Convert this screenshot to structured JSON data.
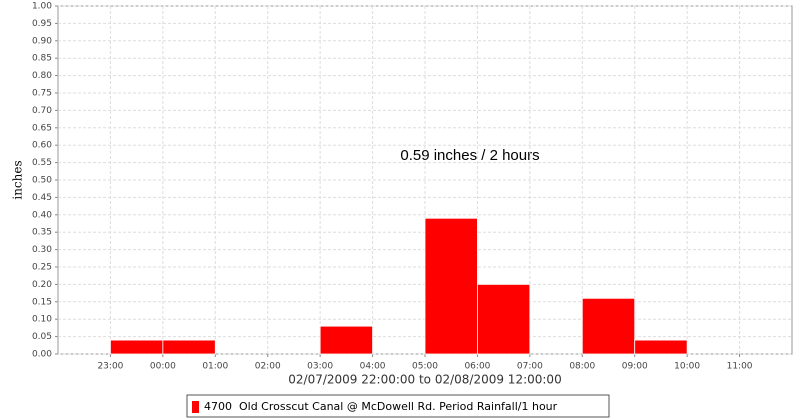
{
  "chart_data": {
    "type": "histogram",
    "annotation": "0.59 inches / 2 hours",
    "y_label": "inches",
    "x_label": "02/07/2009 22:00:00 to 02/08/2009 12:00:00",
    "series": [
      {
        "name": "4700  Old Crosscut Canal @ McDowell Rd. Period Rainfall/1 hour",
        "color": "#ff0000",
        "values": [
          0.04,
          0.04,
          0,
          0,
          0.08,
          0,
          0.39,
          0.2,
          0,
          0.16,
          0.04
        ]
      }
    ],
    "bins": [
      23,
      24,
      25,
      26,
      27,
      28,
      29,
      30,
      31,
      32,
      33,
      34
    ],
    "xlim": [
      22,
      36
    ],
    "xticks": [
      {
        "value": 23,
        "label": "23:00"
      },
      {
        "value": 24,
        "label": "00:00"
      },
      {
        "value": 25,
        "label": "01:00"
      },
      {
        "value": 26,
        "label": "02:00"
      },
      {
        "value": 27,
        "label": "03:00"
      },
      {
        "value": 28,
        "label": "04:00"
      },
      {
        "value": 29,
        "label": "05:00"
      },
      {
        "value": 30,
        "label": "06:00"
      },
      {
        "value": 31,
        "label": "07:00"
      },
      {
        "value": 32,
        "label": "08:00"
      },
      {
        "value": 33,
        "label": "09:00"
      },
      {
        "value": 34,
        "label": "10:00"
      },
      {
        "value": 35,
        "label": "11:00"
      }
    ],
    "ylim": [
      0,
      1
    ],
    "yticks": [
      {
        "value": 0,
        "label": "0.00"
      },
      {
        "value": 0.05,
        "label": "0.05"
      },
      {
        "value": 0.1,
        "label": "0.10"
      },
      {
        "value": 0.15,
        "label": "0.15"
      },
      {
        "value": 0.2,
        "label": "0.20"
      },
      {
        "value": 0.25,
        "label": "0.25"
      },
      {
        "value": 0.3,
        "label": "0.30"
      },
      {
        "value": 0.35,
        "label": "0.35"
      },
      {
        "value": 0.4,
        "label": "0.40"
      },
      {
        "value": 0.45,
        "label": "0.45"
      },
      {
        "value": 0.5,
        "label": "0.50"
      },
      {
        "value": 0.55,
        "label": "0.55"
      },
      {
        "value": 0.6,
        "label": "0.60"
      },
      {
        "value": 0.65,
        "label": "0.65"
      },
      {
        "value": 0.7,
        "label": "0.70"
      },
      {
        "value": 0.75,
        "label": "0.75"
      },
      {
        "value": 0.8,
        "label": "0.80"
      },
      {
        "value": 0.85,
        "label": "0.85"
      },
      {
        "value": 0.9,
        "label": "0.90"
      },
      {
        "value": 0.95,
        "label": "0.95"
      },
      {
        "value": 1,
        "label": "1.00"
      }
    ],
    "grid": true
  }
}
